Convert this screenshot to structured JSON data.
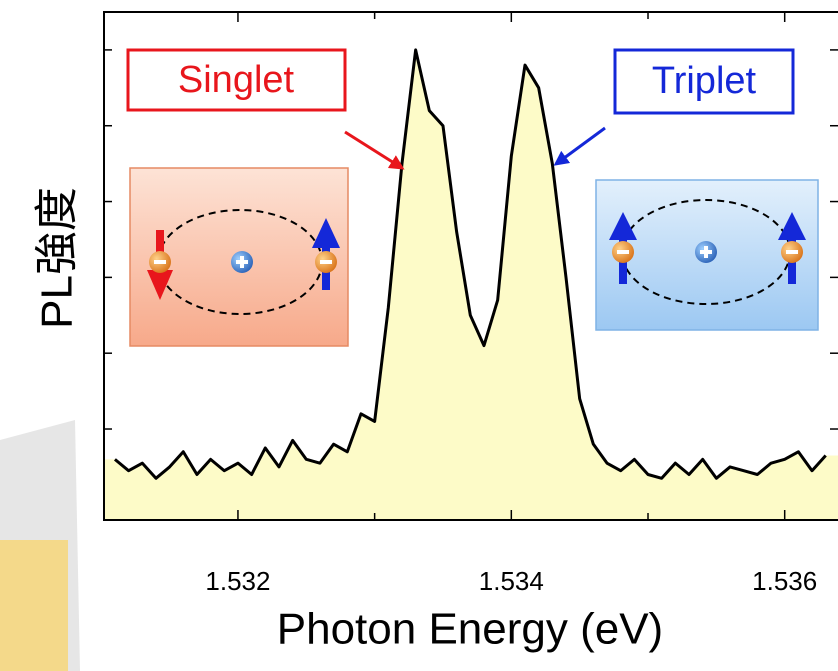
{
  "chart_data": {
    "type": "line",
    "x_label": "Photon Energy (eV)",
    "y_label": "PL強度",
    "annotations": [
      "Singlet",
      "Triplet"
    ],
    "x": [
      1.5311,
      1.5312,
      1.5313,
      1.5314,
      1.5315,
      1.5316,
      1.5317,
      1.5318,
      1.5319,
      1.532,
      1.5321,
      1.5322,
      1.5323,
      1.5324,
      1.5325,
      1.5326,
      1.5327,
      1.5328,
      1.5329,
      1.533,
      1.5331,
      1.5332,
      1.5333,
      1.5334,
      1.5335,
      1.5336,
      1.5337,
      1.5338,
      1.5339,
      1.534,
      1.5341,
      1.5342,
      1.5343,
      1.5344,
      1.5345,
      1.5346,
      1.5347,
      1.5348,
      1.5349,
      1.535,
      1.5351,
      1.5352,
      1.5353,
      1.5354,
      1.5355,
      1.5356,
      1.5357,
      1.5358,
      1.5359,
      1.536,
      1.5361,
      1.5362,
      1.5363
    ],
    "series": [
      {
        "color": "#000000",
        "fill": "#fdfbc8",
        "values": [
          0.6,
          0.45,
          0.55,
          0.35,
          0.5,
          0.7,
          0.4,
          0.6,
          0.45,
          0.55,
          0.4,
          0.75,
          0.5,
          0.85,
          0.6,
          0.55,
          0.8,
          0.7,
          1.2,
          1.1,
          2.6,
          4.5,
          6.0,
          5.2,
          5.0,
          3.6,
          2.5,
          2.1,
          2.7,
          4.6,
          5.8,
          5.5,
          4.5,
          3.0,
          1.4,
          0.8,
          0.55,
          0.45,
          0.6,
          0.4,
          0.35,
          0.55,
          0.4,
          0.6,
          0.35,
          0.5,
          0.45,
          0.4,
          0.55,
          0.6,
          0.7,
          0.45,
          0.65
        ]
      }
    ],
    "xlim": [
      1.53102,
      1.53639
    ],
    "xticks": [
      1.532,
      1.534,
      1.536
    ],
    "xminorticks": [
      1.533,
      1.535
    ],
    "ylim": [
      -0.2,
      6.5
    ],
    "yticks": [
      1,
      2,
      3,
      4,
      5,
      6
    ]
  }
}
